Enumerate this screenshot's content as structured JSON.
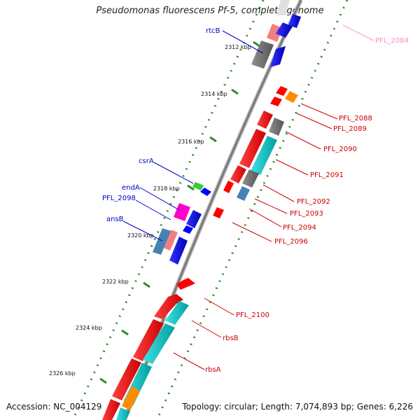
{
  "title": "Pseudomonas fluorescens Pf-5, complete genome",
  "footer": {
    "accession": "Accession: NC_004129",
    "topology": "Topology: circular; Length: 7,074,893 bp; Genes: 6,226"
  },
  "colors": {
    "backbone": "#8c8c8c",
    "tick_dots": "#2e8b2e",
    "gene_red": "#ff0000",
    "gene_blue": "#0000ff",
    "gene_cyan": "#00cdcd",
    "gene_gray": "#6e6e6e",
    "gene_pink": "#f08080",
    "gene_magenta": "#ff00cc",
    "gene_steelblue": "#4682b4",
    "gene_green": "#32cd32",
    "gene_orange": "#ff8c00",
    "label_red": "#cc0000",
    "label_blue": "#0000cc",
    "label_pink": "#ff88cc"
  },
  "ticks": [
    "2312 kbp",
    "2314 kbp",
    "2316 kbp",
    "2318 kbp",
    "2320 kbp",
    "2322 kbp",
    "2324 kbp",
    "2326 kbp"
  ],
  "left_labels": [
    "rtcB",
    "csrA",
    "endA",
    "PFL_2098",
    "ansB"
  ],
  "right_labels": [
    "PFL_2084",
    "PFL_2088",
    "PFL_2089",
    "PFL_2090",
    "PFL_2091",
    "PFL_2092",
    "PFL_2093",
    "PFL_2094",
    "PFL_2096",
    "PFL_2100",
    "rbsB",
    "rbsA"
  ]
}
